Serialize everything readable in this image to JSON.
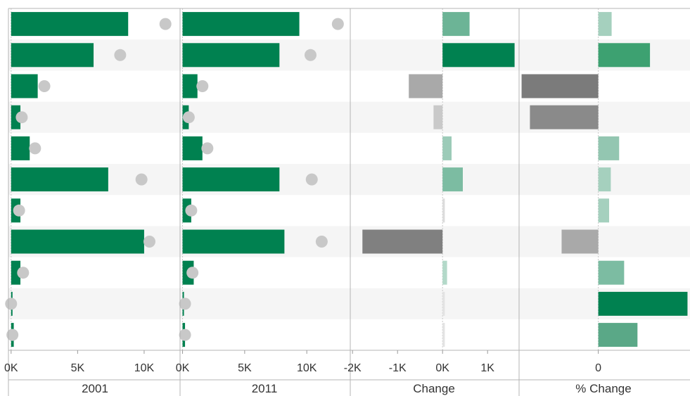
{
  "chart_data": [
    {
      "type": "bar",
      "xlabel": "2001",
      "xlim": [
        -0.2,
        12.7
      ],
      "ticks": [
        0,
        5,
        10
      ],
      "tick_labels": [
        "0K",
        "5K",
        "10K"
      ],
      "units": "thousands",
      "bars": [
        8.8,
        6.2,
        2.0,
        0.7,
        1.4,
        7.3,
        0.7,
        10.0,
        0.7,
        0.1,
        0.2
      ],
      "reference_points": [
        11.6,
        8.2,
        2.5,
        0.8,
        1.8,
        9.8,
        0.6,
        10.4,
        0.9,
        0.0,
        0.1
      ],
      "bar_color": "#008150",
      "point_color": "#c8c8c8"
    },
    {
      "type": "bar",
      "xlabel": "2011",
      "xlim": [
        -0.2,
        13.5
      ],
      "ticks": [
        0,
        5,
        10
      ],
      "tick_labels": [
        "0K",
        "5K",
        "10K"
      ],
      "units": "thousands",
      "bars": [
        9.4,
        7.8,
        1.2,
        0.5,
        1.6,
        7.8,
        0.7,
        8.2,
        0.9,
        0.1,
        0.2
      ],
      "reference_points": [
        12.5,
        10.3,
        1.6,
        0.5,
        2.0,
        10.4,
        0.7,
        11.2,
        0.8,
        0.2,
        0.2
      ],
      "bar_color": "#008150",
      "point_color": "#c8c8c8"
    },
    {
      "type": "bar",
      "xlabel": "Change",
      "xlim": [
        -2.05,
        1.7
      ],
      "ticks": [
        -2,
        -1,
        0,
        1
      ],
      "tick_labels": [
        "-2K",
        "-1K",
        "0K",
        "1K"
      ],
      "units": "thousands",
      "bars": [
        0.6,
        1.6,
        -0.75,
        -0.2,
        0.2,
        0.45,
        0.05,
        -1.78,
        0.1,
        0.05,
        0.05
      ],
      "colors": [
        "#6cb496",
        "#008150",
        "#a9a9a9",
        "#c9c9c9",
        "#9ccbb8",
        "#7cbca2",
        "#dcdcdc",
        "#808080",
        "#b3d9c9",
        "#e3e3e3",
        "#e3e3e3"
      ]
    },
    {
      "type": "bar",
      "xlabel": "% Change",
      "xlim": [
        -0.95,
        1.1
      ],
      "ticks": [
        0
      ],
      "tick_labels": [
        "0"
      ],
      "bars": [
        0.16,
        0.62,
        -0.92,
        -0.82,
        0.25,
        0.15,
        0.13,
        -0.44,
        0.31,
        1.07,
        0.47
      ],
      "colors": [
        "#a5d0be",
        "#3da171",
        "#7b7b7b",
        "#8a8a8a",
        "#93c6b1",
        "#a5d0be",
        "#a5d0be",
        "#a9a9a9",
        "#7cbca2",
        "#008150",
        "#5aa887"
      ]
    }
  ]
}
